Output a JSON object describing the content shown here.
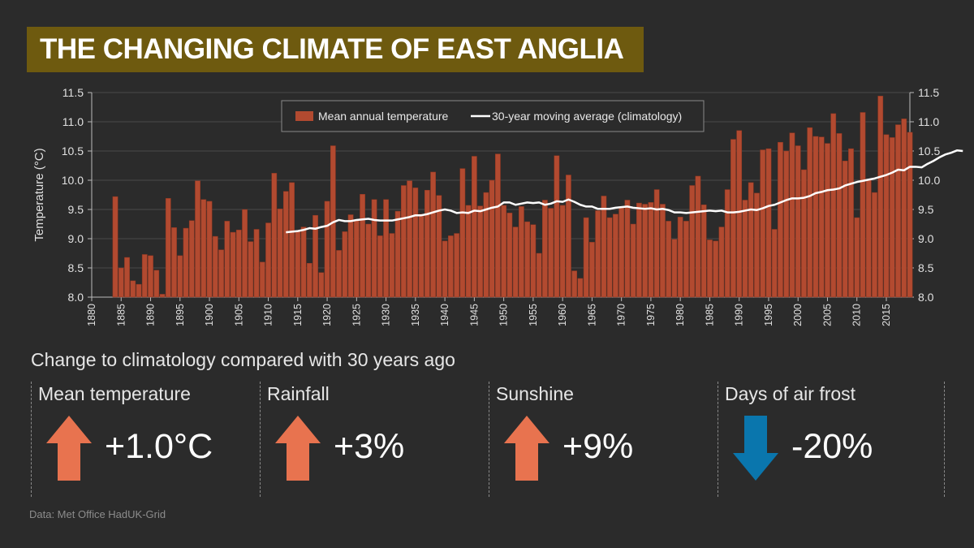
{
  "title": "THE CHANGING CLIMATE OF EAST ANGLIA",
  "subtitle": "Change to climatology compared with 30 years ago",
  "source": "Data: Met Office HadUK-Grid",
  "colors": {
    "bar": "#b24a30",
    "bar_stroke": "#8c3520",
    "line": "#ffffff",
    "up_arrow": "#e8734f",
    "down_arrow": "#0a76ad",
    "title_bg": "#6e5a0f"
  },
  "panels": [
    {
      "label": "Mean temperature",
      "value": "+1.0°C",
      "direction": "up",
      "icon": "up-arrow-icon"
    },
    {
      "label": "Rainfall",
      "value": "+3%",
      "direction": "up",
      "icon": "up-arrow-icon"
    },
    {
      "label": "Sunshine",
      "value": "+9%",
      "direction": "up",
      "icon": "up-arrow-icon"
    },
    {
      "label": "Days of air frost",
      "value": "-20%",
      "direction": "down",
      "icon": "down-arrow-icon"
    }
  ],
  "chart_data": {
    "type": "bar",
    "ylabel": "Temperature (°C)",
    "xlabel": "",
    "ylim": [
      8.0,
      11.5
    ],
    "xlim": [
      1880,
      2019
    ],
    "yticks": [
      "8.0",
      "8.5",
      "9.0",
      "9.5",
      "10.0",
      "10.5",
      "11.0",
      "11.5"
    ],
    "xticks": [
      "1880",
      "1885",
      "1890",
      "1895",
      "1900",
      "1905",
      "1910",
      "1915",
      "1920",
      "1925",
      "1930",
      "1935",
      "1940",
      "1945",
      "1950",
      "1955",
      "1960",
      "1965",
      "1970",
      "1975",
      "1980",
      "1985",
      "1990",
      "1995",
      "2000",
      "2005",
      "2010",
      "2015"
    ],
    "grid": true,
    "legend": {
      "position": "top-center",
      "bar_label": "Mean annual temperature",
      "line_label": "30-year moving average (climatology)"
    },
    "series": [
      {
        "name": "Mean annual temperature",
        "kind": "bar",
        "start_year": 1884,
        "values": [
          9.72,
          8.5,
          8.68,
          8.28,
          8.22,
          8.73,
          8.71,
          8.46,
          8.05,
          9.69,
          9.19,
          8.71,
          9.18,
          9.31,
          9.99,
          9.67,
          9.64,
          9.04,
          8.81,
          9.3,
          9.11,
          9.15,
          9.5,
          8.95,
          9.16,
          8.6,
          9.27,
          10.12,
          9.51,
          9.81,
          9.96,
          9.13,
          9.2,
          8.58,
          9.4,
          8.42,
          9.64,
          10.59,
          8.8,
          9.12,
          9.41,
          9.31,
          9.76,
          9.25,
          9.67,
          9.05,
          9.67,
          9.09,
          9.47,
          9.91,
          9.99,
          9.87,
          9.42,
          9.83,
          10.14,
          9.74,
          8.96,
          9.05,
          9.09,
          10.2,
          9.57,
          10.41,
          9.56,
          9.79,
          10.0,
          10.45,
          9.57,
          9.44,
          9.2,
          9.55,
          9.29,
          9.24,
          8.75,
          9.66,
          9.52,
          10.42,
          9.57,
          10.09,
          8.45,
          8.32,
          9.36,
          8.94,
          9.48,
          9.73,
          9.36,
          9.42,
          9.53,
          9.66,
          9.25,
          9.61,
          9.59,
          9.62,
          9.84,
          9.59,
          9.3,
          8.99,
          9.37,
          9.3,
          9.91,
          10.07,
          9.58,
          8.98,
          8.96,
          9.2,
          9.84,
          10.7,
          10.85,
          9.66,
          9.96,
          9.78,
          10.52,
          10.54,
          9.16,
          10.65,
          10.5,
          10.81,
          10.59,
          10.18,
          10.9,
          10.75,
          10.74,
          10.63,
          11.14,
          10.8,
          10.33,
          10.54,
          9.36,
          11.16,
          10.02,
          9.79,
          11.44,
          10.78,
          10.73,
          10.95,
          11.05,
          10.82
        ]
      },
      {
        "name": "30-year moving average (climatology)",
        "kind": "line",
        "start_year": 1913,
        "values": [
          9.11,
          9.12,
          9.13,
          9.15,
          9.18,
          9.17,
          9.2,
          9.22,
          9.28,
          9.32,
          9.3,
          9.3,
          9.32,
          9.33,
          9.34,
          9.32,
          9.31,
          9.31,
          9.31,
          9.33,
          9.35,
          9.37,
          9.4,
          9.4,
          9.42,
          9.45,
          9.48,
          9.5,
          9.48,
          9.44,
          9.45,
          9.44,
          9.48,
          9.47,
          9.5,
          9.53,
          9.55,
          9.62,
          9.62,
          9.58,
          9.6,
          9.62,
          9.61,
          9.62,
          9.58,
          9.6,
          9.64,
          9.63,
          9.67,
          9.63,
          9.58,
          9.55,
          9.55,
          9.51,
          9.51,
          9.51,
          9.53,
          9.54,
          9.55,
          9.53,
          9.52,
          9.51,
          9.52,
          9.5,
          9.51,
          9.49,
          9.45,
          9.45,
          9.44,
          9.45,
          9.46,
          9.47,
          9.48,
          9.47,
          9.48,
          9.45,
          9.45,
          9.46,
          9.48,
          9.5,
          9.49,
          9.52,
          9.56,
          9.58,
          9.62,
          9.66,
          9.69,
          9.69,
          9.7,
          9.73,
          9.78,
          9.8,
          9.83,
          9.84,
          9.86,
          9.91,
          9.94,
          9.97,
          9.99,
          10.01,
          10.03,
          10.06,
          10.09,
          10.13,
          10.18,
          10.17,
          10.23,
          10.23,
          10.22,
          10.28,
          10.33,
          10.39,
          10.44,
          10.47,
          10.51,
          10.5
        ]
      }
    ]
  }
}
